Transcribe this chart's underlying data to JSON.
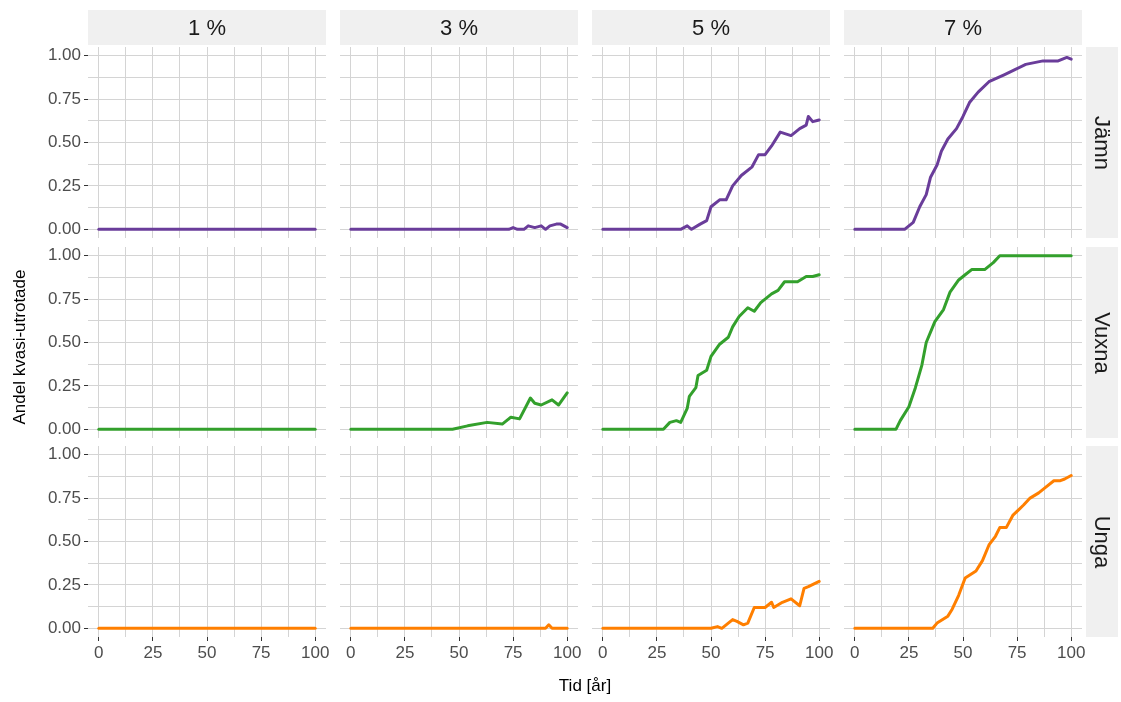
{
  "chart_data": [
    {
      "type": "line",
      "title": "1 %",
      "x": [
        0,
        100
      ],
      "values": [
        0,
        0
      ],
      "color": "#6a3d9a",
      "xlim": [
        -5,
        105
      ],
      "ylim": [
        -0.05,
        1.05
      ],
      "xticks": [
        0,
        12.5,
        25,
        37.5,
        50,
        62.5,
        75,
        87.5,
        100
      ],
      "yticks": [
        {
          "value": 0,
          "label": "0.00"
        },
        {
          "value": 0.125,
          "label": null
        },
        {
          "value": 0.25,
          "label": "0.25"
        },
        {
          "value": 0.375,
          "label": null
        },
        {
          "value": 0.5,
          "label": "0.50"
        },
        {
          "value": 0.625,
          "label": null
        },
        {
          "value": 0.75,
          "label": "0.75"
        },
        {
          "value": 0.875,
          "label": null
        },
        {
          "value": 1,
          "label": "1.00"
        }
      ],
      "grid": true,
      "tick_labels": "y"
    },
    {
      "type": "line",
      "title": "3 %",
      "x": [
        0,
        73,
        75,
        77,
        80,
        82,
        85,
        88,
        90,
        92,
        95,
        97,
        100
      ],
      "values": [
        0,
        0,
        0.01,
        0,
        0,
        0.02,
        0.01,
        0.02,
        0,
        0.02,
        0.03,
        0.03,
        0.01
      ],
      "color": "#6a3d9a",
      "xlim": [
        -5,
        105
      ],
      "ylim": [
        -0.05,
        1.05
      ],
      "xticks": [
        0,
        12.5,
        25,
        37.5,
        50,
        62.5,
        75,
        87.5,
        100
      ],
      "yticks": [
        0,
        0.125,
        0.25,
        0.375,
        0.5,
        0.625,
        0.75,
        0.875,
        1
      ],
      "grid": true,
      "tick_labels": false
    },
    {
      "type": "line",
      "title": "5 %",
      "x": [
        0,
        36,
        39,
        41,
        45,
        48,
        50,
        54,
        57,
        60,
        64,
        69,
        72,
        75,
        78,
        82,
        87,
        91,
        94,
        95,
        97,
        100
      ],
      "values": [
        0,
        0,
        0.02,
        0,
        0.03,
        0.05,
        0.13,
        0.17,
        0.17,
        0.25,
        0.31,
        0.36,
        0.43,
        0.43,
        0.48,
        0.56,
        0.54,
        0.58,
        0.6,
        0.65,
        0.62,
        0.63
      ],
      "color": "#6a3d9a",
      "xlim": [
        -5,
        105
      ],
      "ylim": [
        -0.05,
        1.05
      ],
      "xticks": [
        0,
        12.5,
        25,
        37.5,
        50,
        62.5,
        75,
        87.5,
        100
      ],
      "yticks": [
        0,
        0.125,
        0.25,
        0.375,
        0.5,
        0.625,
        0.75,
        0.875,
        1
      ],
      "grid": true,
      "tick_labels": false
    },
    {
      "type": "line",
      "title": "7 %",
      "y2label": "Jämn",
      "x": [
        0,
        23,
        27,
        30,
        33,
        35,
        38,
        40,
        43,
        47,
        50,
        53,
        57,
        62,
        69,
        74,
        79,
        87,
        94,
        98,
        100
      ],
      "values": [
        0,
        0,
        0.04,
        0.13,
        0.2,
        0.3,
        0.37,
        0.45,
        0.52,
        0.58,
        0.65,
        0.73,
        0.79,
        0.85,
        0.89,
        0.92,
        0.95,
        0.97,
        0.97,
        0.99,
        0.98
      ],
      "color": "#6a3d9a",
      "xlim": [
        -5,
        105
      ],
      "ylim": [
        -0.05,
        1.05
      ],
      "xticks": [
        0,
        12.5,
        25,
        37.5,
        50,
        62.5,
        75,
        87.5,
        100
      ],
      "yticks": [
        0,
        0.125,
        0.25,
        0.375,
        0.5,
        0.625,
        0.75,
        0.875,
        1
      ],
      "grid": true,
      "tick_labels": false
    },
    {
      "type": "line",
      "ylabel": "Andel kvasi-utrotade",
      "x": [
        0,
        100
      ],
      "values": [
        0,
        0
      ],
      "color": "#33a02c",
      "xlim": [
        -5,
        105
      ],
      "ylim": [
        -0.05,
        1.05
      ],
      "xticks": [
        0,
        12.5,
        25,
        37.5,
        50,
        62.5,
        75,
        87.5,
        100
      ],
      "yticks": [
        {
          "value": 0,
          "label": "0.00"
        },
        {
          "value": 0.125,
          "label": null
        },
        {
          "value": 0.25,
          "label": "0.25"
        },
        {
          "value": 0.375,
          "label": null
        },
        {
          "value": 0.5,
          "label": "0.50"
        },
        {
          "value": 0.625,
          "label": null
        },
        {
          "value": 0.75,
          "label": "0.75"
        },
        {
          "value": 0.875,
          "label": null
        },
        {
          "value": 1,
          "label": "1.00"
        }
      ],
      "grid": true,
      "tick_labels": "y"
    },
    {
      "type": "line",
      "x": [
        0,
        47,
        54,
        63,
        70,
        74,
        78,
        83,
        85,
        88,
        93,
        96,
        100
      ],
      "values": [
        0,
        0,
        0.02,
        0.04,
        0.03,
        0.07,
        0.06,
        0.18,
        0.15,
        0.14,
        0.17,
        0.14,
        0.21
      ],
      "color": "#33a02c",
      "xlim": [
        -5,
        105
      ],
      "ylim": [
        -0.05,
        1.05
      ],
      "xticks": [
        0,
        12.5,
        25,
        37.5,
        50,
        62.5,
        75,
        87.5,
        100
      ],
      "yticks": [
        0,
        0.125,
        0.25,
        0.375,
        0.5,
        0.625,
        0.75,
        0.875,
        1
      ],
      "grid": true,
      "tick_labels": false
    },
    {
      "type": "line",
      "x": [
        0,
        25,
        28,
        31,
        34,
        36,
        39,
        40,
        43,
        44,
        48,
        50,
        54,
        58,
        60,
        63,
        67,
        70,
        73,
        78,
        81,
        84,
        90,
        94,
        97,
        100
      ],
      "values": [
        0,
        0,
        0,
        0.04,
        0.05,
        0.04,
        0.12,
        0.19,
        0.24,
        0.31,
        0.34,
        0.42,
        0.49,
        0.53,
        0.59,
        0.65,
        0.7,
        0.68,
        0.73,
        0.78,
        0.8,
        0.85,
        0.85,
        0.88,
        0.88,
        0.89
      ],
      "color": "#33a02c",
      "xlim": [
        -5,
        105
      ],
      "ylim": [
        -0.05,
        1.05
      ],
      "xticks": [
        0,
        12.5,
        25,
        37.5,
        50,
        62.5,
        75,
        87.5,
        100
      ],
      "yticks": [
        0,
        0.125,
        0.25,
        0.375,
        0.5,
        0.625,
        0.75,
        0.875,
        1
      ],
      "grid": true,
      "tick_labels": false
    },
    {
      "type": "line",
      "y2label": "Vuxna",
      "x": [
        0,
        19,
        21,
        25,
        28,
        31,
        33,
        37,
        41,
        44,
        48,
        51,
        54,
        60,
        64,
        67,
        100
      ],
      "values": [
        0,
        0,
        0.05,
        0.13,
        0.24,
        0.37,
        0.5,
        0.62,
        0.69,
        0.79,
        0.86,
        0.89,
        0.92,
        0.92,
        0.96,
        1,
        1
      ],
      "color": "#33a02c",
      "xlim": [
        -5,
        105
      ],
      "ylim": [
        -0.05,
        1.05
      ],
      "xticks": [
        0,
        12.5,
        25,
        37.5,
        50,
        62.5,
        75,
        87.5,
        100
      ],
      "yticks": [
        0,
        0.125,
        0.25,
        0.375,
        0.5,
        0.625,
        0.75,
        0.875,
        1
      ],
      "grid": true,
      "tick_labels": false
    },
    {
      "type": "line",
      "x": [
        0,
        100
      ],
      "values": [
        0,
        0
      ],
      "color": "#ff7f00",
      "xlim": [
        -5,
        105
      ],
      "ylim": [
        -0.05,
        1.05
      ],
      "xticks": [
        0,
        {
          "value": 12.5,
          "label": null
        },
        25,
        {
          "value": 37.5,
          "label": null
        },
        50,
        {
          "value": 62.5,
          "label": null
        },
        75,
        {
          "value": 87.5,
          "label": null
        },
        100
      ],
      "yticks": [
        {
          "value": 0,
          "label": "0.00"
        },
        {
          "value": 0.125,
          "label": null
        },
        {
          "value": 0.25,
          "label": "0.25"
        },
        {
          "value": 0.375,
          "label": null
        },
        {
          "value": 0.5,
          "label": "0.50"
        },
        {
          "value": 0.625,
          "label": null
        },
        {
          "value": 0.75,
          "label": "0.75"
        },
        {
          "value": 0.875,
          "label": null
        },
        {
          "value": 1,
          "label": "1.00"
        }
      ],
      "grid": true
    },
    {
      "type": "line",
      "xlabel": "Tid [år]",
      "x": [
        0,
        90,
        91.5,
        93,
        100
      ],
      "values": [
        0,
        0,
        0.02,
        0,
        0
      ],
      "color": "#ff7f00",
      "xlim": [
        -5,
        105
      ],
      "ylim": [
        -0.05,
        1.05
      ],
      "xticks": [
        0,
        {
          "value": 12.5,
          "label": null
        },
        25,
        {
          "value": 37.5,
          "label": null
        },
        50,
        {
          "value": 62.5,
          "label": null
        },
        75,
        {
          "value": 87.5,
          "label": null
        },
        100
      ],
      "yticks": [
        0,
        0.125,
        0.25,
        0.375,
        0.5,
        0.625,
        0.75,
        0.875,
        1
      ],
      "grid": true,
      "tick_labels": "x"
    },
    {
      "type": "line",
      "x": [
        0,
        50,
        53,
        55,
        60,
        62,
        65,
        67,
        70,
        75,
        78,
        79,
        83,
        87,
        91,
        93,
        95,
        100
      ],
      "values": [
        0,
        0,
        0.01,
        0,
        0.05,
        0.04,
        0.02,
        0.03,
        0.12,
        0.12,
        0.15,
        0.12,
        0.15,
        0.17,
        0.13,
        0.23,
        0.24,
        0.27
      ],
      "color": "#ff7f00",
      "xlim": [
        -5,
        105
      ],
      "ylim": [
        -0.05,
        1.05
      ],
      "xticks": [
        0,
        {
          "value": 12.5,
          "label": null
        },
        25,
        {
          "value": 37.5,
          "label": null
        },
        50,
        {
          "value": 62.5,
          "label": null
        },
        75,
        {
          "value": 87.5,
          "label": null
        },
        100
      ],
      "yticks": [
        0,
        0.125,
        0.25,
        0.375,
        0.5,
        0.625,
        0.75,
        0.875,
        1
      ],
      "grid": true,
      "tick_labels": "x"
    },
    {
      "type": "line",
      "y2label": "Unga",
      "x": [
        0,
        36,
        38,
        43,
        45,
        48,
        51,
        56,
        59,
        62,
        65,
        67,
        70,
        73,
        78,
        81,
        85,
        88,
        92,
        95,
        97,
        100
      ],
      "values": [
        0,
        0,
        0.03,
        0.07,
        0.11,
        0.19,
        0.29,
        0.33,
        0.39,
        0.48,
        0.53,
        0.58,
        0.58,
        0.65,
        0.71,
        0.75,
        0.78,
        0.81,
        0.85,
        0.85,
        0.86,
        0.88
      ],
      "color": "#ff7f00",
      "xlim": [
        -5,
        105
      ],
      "ylim": [
        -0.05,
        1.05
      ],
      "xticks": [
        0,
        {
          "value": 12.5,
          "label": null
        },
        25,
        {
          "value": 37.5,
          "label": null
        },
        50,
        {
          "value": 62.5,
          "label": null
        },
        75,
        {
          "value": 87.5,
          "label": null
        },
        100
      ],
      "yticks": [
        0,
        0.125,
        0.25,
        0.375,
        0.5,
        0.625,
        0.75,
        0.875,
        1
      ],
      "grid": true,
      "tick_labels": "x"
    }
  ]
}
